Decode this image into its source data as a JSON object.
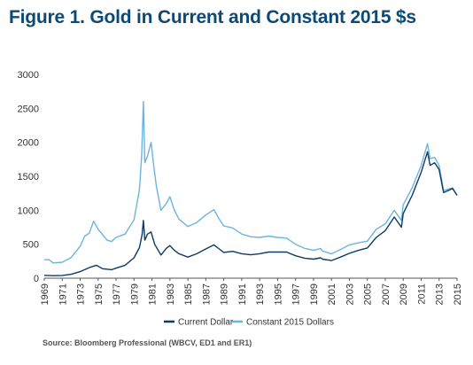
{
  "figure": {
    "title": "Figure 1. Gold in Current and Constant 2015 $s",
    "source": "Source: Bloomberg Professional (WBCV, ED1 and ER1)"
  },
  "colors": {
    "current": "#0d3b66",
    "constant": "#6cb4e0",
    "title": "#0b4a78"
  },
  "chart_data": {
    "type": "line",
    "title": "Figure 1. Gold in Current and Constant 2015 $s",
    "xlabel": "",
    "ylabel": "",
    "xlim": [
      1969,
      2015
    ],
    "ylim": [
      0,
      3000
    ],
    "yticks": [
      0,
      500,
      1000,
      1500,
      2000,
      2500,
      3000
    ],
    "xticks": [
      1969,
      1971,
      1973,
      1975,
      1977,
      1979,
      1981,
      1983,
      1985,
      1987,
      1989,
      1991,
      1993,
      1995,
      1997,
      1999,
      2001,
      2003,
      2005,
      2007,
      2009,
      2011,
      2013,
      2015
    ],
    "grid": false,
    "legend": "bottom-center",
    "series": [
      {
        "name": "Current Dollar",
        "color": "#0d3b66",
        "points": [
          [
            1969,
            42
          ],
          [
            1970,
            36
          ],
          [
            1971,
            40
          ],
          [
            1972,
            58
          ],
          [
            1973,
            97
          ],
          [
            1974,
            155
          ],
          [
            1974.8,
            190
          ],
          [
            1975.5,
            140
          ],
          [
            1976.5,
            125
          ],
          [
            1977,
            148
          ],
          [
            1978,
            190
          ],
          [
            1979,
            300
          ],
          [
            1979.6,
            450
          ],
          [
            1979.9,
            640
          ],
          [
            1980.05,
            850
          ],
          [
            1980.2,
            560
          ],
          [
            1980.5,
            650
          ],
          [
            1980.9,
            680
          ],
          [
            1981.3,
            500
          ],
          [
            1982,
            340
          ],
          [
            1982.6,
            440
          ],
          [
            1983,
            480
          ],
          [
            1983.5,
            410
          ],
          [
            1984,
            360
          ],
          [
            1985,
            310
          ],
          [
            1986,
            360
          ],
          [
            1987,
            430
          ],
          [
            1987.9,
            490
          ],
          [
            1988.5,
            430
          ],
          [
            1989,
            380
          ],
          [
            1990,
            395
          ],
          [
            1991,
            360
          ],
          [
            1992,
            345
          ],
          [
            1993,
            360
          ],
          [
            1994,
            385
          ],
          [
            1995,
            385
          ],
          [
            1996,
            385
          ],
          [
            1997,
            330
          ],
          [
            1998,
            295
          ],
          [
            1999,
            280
          ],
          [
            1999.8,
            300
          ],
          [
            2000,
            280
          ],
          [
            2001,
            260
          ],
          [
            2002,
            310
          ],
          [
            2003,
            365
          ],
          [
            2004,
            410
          ],
          [
            2005,
            445
          ],
          [
            2006,
            600
          ],
          [
            2007,
            700
          ],
          [
            2008,
            900
          ],
          [
            2008.8,
            750
          ],
          [
            2009,
            950
          ],
          [
            2010,
            1220
          ],
          [
            2011,
            1560
          ],
          [
            2011.7,
            1860
          ],
          [
            2012,
            1660
          ],
          [
            2012.5,
            1700
          ],
          [
            2013,
            1600
          ],
          [
            2013.5,
            1260
          ],
          [
            2014,
            1290
          ],
          [
            2014.5,
            1320
          ],
          [
            2015,
            1220
          ]
        ]
      },
      {
        "name": "Constant 2015 Dollars",
        "color": "#6cb4e0",
        "points": [
          [
            1969,
            270
          ],
          [
            1969.5,
            275
          ],
          [
            1970,
            225
          ],
          [
            1971,
            235
          ],
          [
            1972,
            305
          ],
          [
            1973,
            470
          ],
          [
            1973.5,
            620
          ],
          [
            1974,
            660
          ],
          [
            1974.5,
            840
          ],
          [
            1975,
            720
          ],
          [
            1976,
            560
          ],
          [
            1976.5,
            540
          ],
          [
            1977,
            600
          ],
          [
            1978,
            650
          ],
          [
            1979,
            860
          ],
          [
            1979.6,
            1300
          ],
          [
            1979.85,
            1800
          ],
          [
            1980.05,
            2600
          ],
          [
            1980.2,
            1700
          ],
          [
            1980.5,
            1800
          ],
          [
            1980.9,
            2000
          ],
          [
            1981.2,
            1650
          ],
          [
            1981.5,
            1350
          ],
          [
            1982,
            1000
          ],
          [
            1982.6,
            1100
          ],
          [
            1983,
            1200
          ],
          [
            1983.5,
            1000
          ],
          [
            1984,
            870
          ],
          [
            1985,
            760
          ],
          [
            1986,
            820
          ],
          [
            1987,
            930
          ],
          [
            1987.9,
            1010
          ],
          [
            1988.5,
            870
          ],
          [
            1989,
            770
          ],
          [
            1990,
            740
          ],
          [
            1991,
            650
          ],
          [
            1992,
            610
          ],
          [
            1993,
            600
          ],
          [
            1994,
            620
          ],
          [
            1995,
            600
          ],
          [
            1996,
            590
          ],
          [
            1997,
            500
          ],
          [
            1998,
            440
          ],
          [
            1999,
            410
          ],
          [
            1999.8,
            435
          ],
          [
            2000,
            400
          ],
          [
            2001,
            360
          ],
          [
            2002,
            420
          ],
          [
            2003,
            490
          ],
          [
            2004,
            520
          ],
          [
            2005,
            545
          ],
          [
            2006,
            720
          ],
          [
            2007,
            800
          ],
          [
            2008,
            1000
          ],
          [
            2008.8,
            850
          ],
          [
            2009,
            1080
          ],
          [
            2010,
            1330
          ],
          [
            2011,
            1660
          ],
          [
            2011.7,
            1980
          ],
          [
            2012,
            1760
          ],
          [
            2012.5,
            1780
          ],
          [
            2013,
            1660
          ],
          [
            2013.5,
            1290
          ],
          [
            2014,
            1310
          ],
          [
            2014.5,
            1330
          ],
          [
            2015,
            1220
          ]
        ]
      }
    ]
  }
}
